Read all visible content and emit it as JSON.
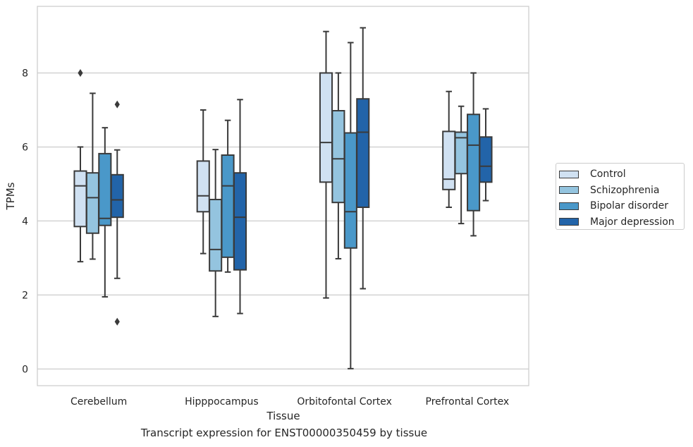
{
  "chart_data": {
    "type": "boxplot",
    "title": "",
    "caption": "Transcript expression for ENST00000350459 by tissue",
    "xlabel": "Tissue",
    "ylabel": "TPMs",
    "ylim": [
      -0.45,
      9.8
    ],
    "yticks": [
      0,
      2,
      4,
      6,
      8
    ],
    "grid": "horizontal",
    "legend_position": "right",
    "categories": [
      "Cerebellum",
      "Hipppocampus",
      "Orbitofontal Cortex",
      "Prefrontal Cortex"
    ],
    "series": [
      {
        "name": "Control",
        "color": "#d0e1f2",
        "boxes": [
          {
            "whislo": 2.9,
            "q1": 3.85,
            "med": 4.95,
            "q3": 5.35,
            "whishi": 6.0,
            "fliers": [
              8.0
            ]
          },
          {
            "whislo": 3.12,
            "q1": 4.25,
            "med": 4.68,
            "q3": 5.62,
            "whishi": 7.0,
            "fliers": []
          },
          {
            "whislo": 1.92,
            "q1": 5.05,
            "med": 6.12,
            "q3": 8.0,
            "whishi": 9.12,
            "fliers": []
          },
          {
            "whislo": 4.37,
            "q1": 4.85,
            "med": 5.13,
            "q3": 6.42,
            "whishi": 7.5,
            "fliers": []
          }
        ]
      },
      {
        "name": "Schizophrenia",
        "color": "#94c4df",
        "boxes": [
          {
            "whislo": 2.97,
            "q1": 3.67,
            "med": 4.63,
            "q3": 5.3,
            "whishi": 7.45,
            "fliers": []
          },
          {
            "whislo": 1.42,
            "q1": 2.65,
            "med": 3.23,
            "q3": 4.58,
            "whishi": 5.93,
            "fliers": []
          },
          {
            "whislo": 2.98,
            "q1": 4.5,
            "med": 5.68,
            "q3": 6.98,
            "whishi": 8.0,
            "fliers": []
          },
          {
            "whislo": 3.93,
            "q1": 5.28,
            "med": 6.25,
            "q3": 6.4,
            "whishi": 7.1,
            "fliers": []
          }
        ]
      },
      {
        "name": "Bipolar disorder",
        "color": "#4a98c9",
        "boxes": [
          {
            "whislo": 1.95,
            "q1": 3.88,
            "med": 4.07,
            "q3": 5.82,
            "whishi": 6.52,
            "fliers": []
          },
          {
            "whislo": 2.62,
            "q1": 3.02,
            "med": 4.95,
            "q3": 5.78,
            "whishi": 6.72,
            "fliers": []
          },
          {
            "whislo": 0.01,
            "q1": 3.27,
            "med": 4.25,
            "q3": 6.38,
            "whishi": 8.82,
            "fliers": []
          },
          {
            "whislo": 3.6,
            "q1": 4.28,
            "med": 6.05,
            "q3": 6.88,
            "whishi": 8.0,
            "fliers": []
          }
        ]
      },
      {
        "name": "Major depression",
        "color": "#2264a9",
        "boxes": [
          {
            "whislo": 2.45,
            "q1": 4.1,
            "med": 4.57,
            "q3": 5.25,
            "whishi": 5.92,
            "fliers": [
              7.15,
              1.28
            ]
          },
          {
            "whislo": 1.5,
            "q1": 2.68,
            "med": 4.1,
            "q3": 5.3,
            "whishi": 7.28,
            "fliers": []
          },
          {
            "whislo": 2.17,
            "q1": 4.37,
            "med": 6.4,
            "q3": 7.3,
            "whishi": 9.22,
            "fliers": []
          },
          {
            "whislo": 4.55,
            "q1": 5.05,
            "med": 5.48,
            "q3": 6.27,
            "whishi": 7.03,
            "fliers": []
          }
        ]
      }
    ]
  }
}
